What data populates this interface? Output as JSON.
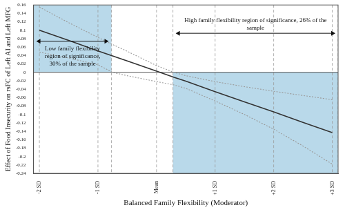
{
  "chart_data": {
    "type": "line",
    "x_label": "Balanced Family Flexibility (Moderator)",
    "y_label": "Effect of Food Insecurity on rsFC of Left AI and Left MFG",
    "x": [
      -2,
      -1.5,
      -1,
      -0.75,
      -0.5,
      0,
      0.3,
      0.5,
      1,
      1.5,
      2,
      2.5,
      3
    ],
    "series": [
      {
        "color": "#333333",
        "line_style": "solid",
        "values": [
          0.1,
          0.076,
          0.051,
          0.039,
          0.027,
          0.003,
          -0.012,
          -0.021,
          -0.046,
          -0.07,
          -0.094,
          -0.119,
          -0.143
        ]
      },
      {
        "color": "#9a9a9a",
        "line_style": "dotted",
        "values": [
          0.155,
          0.118,
          0.083,
          0.066,
          0.05,
          0.016,
          0.0,
          -0.008,
          -0.022,
          -0.034,
          -0.045,
          -0.055,
          -0.065
        ]
      },
      {
        "color": "#9a9a9a",
        "line_style": "dotted",
        "values": [
          0.048,
          0.034,
          0.018,
          0.0,
          -0.008,
          -0.022,
          -0.03,
          -0.038,
          -0.068,
          -0.1,
          -0.135,
          -0.175,
          -0.218
        ]
      }
    ],
    "xlim": [
      -2.1,
      3.1
    ],
    "xticks": [
      {
        "value": -2,
        "label": "-2 SD"
      },
      {
        "value": -1,
        "label": "-1 SD"
      },
      {
        "value": 0,
        "label": "Mean"
      },
      {
        "value": 1,
        "label": "+1 SD"
      },
      {
        "value": 2,
        "label": "+2 SD"
      },
      {
        "value": 3,
        "label": "+3 SD"
      }
    ],
    "ylim": [
      -0.24,
      0.16
    ],
    "yticks": [
      -0.24,
      -0.22,
      -0.2,
      -0.18,
      -0.16,
      -0.14,
      -0.12,
      -0.1,
      -0.08,
      -0.06,
      -0.04,
      -0.02,
      0,
      0.02,
      0.04,
      0.06,
      0.08,
      0.1,
      0.12,
      0.14,
      0.16
    ],
    "hlines": [
      0
    ],
    "regions": [
      {
        "x": [
          -2.1,
          -0.77
        ],
        "y": [
          0,
          0.16
        ],
        "color": "#b9d9ea",
        "label": "Low family flexibility region of significance, 30% of the sample"
      },
      {
        "x": [
          0.28,
          3.1
        ],
        "y": [
          -0.24,
          0
        ],
        "color": "#b9d9ea",
        "label": "High family flexibility region of significance, 26% of the sample"
      }
    ],
    "grid": true,
    "tick_labels": true
  }
}
